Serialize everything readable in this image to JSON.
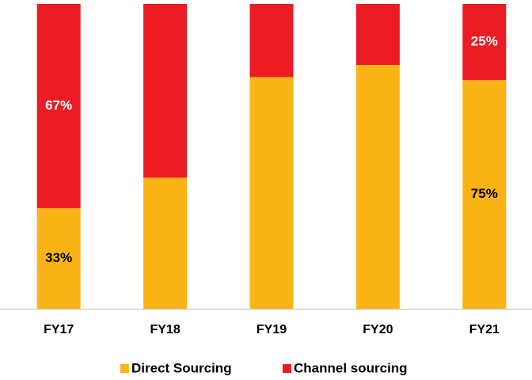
{
  "chart_data": {
    "type": "stacked_bar",
    "categories": [
      "FY17",
      "FY18",
      "FY19",
      "FY20",
      "FY21"
    ],
    "series": [
      {
        "name": "Direct Sourcing",
        "color": "#fbb416",
        "label_color": "#000000",
        "values": [
          33,
          43,
          76,
          80,
          75
        ],
        "value_labels": [
          "33%",
          null,
          null,
          null,
          "75%"
        ]
      },
      {
        "name": "Channel sourcing",
        "color": "#ec1c24",
        "label_color": "#ffffff",
        "values": [
          67,
          57,
          24,
          20,
          25
        ],
        "value_labels": [
          "67%",
          null,
          null,
          null,
          "25%"
        ]
      }
    ],
    "ylim": [
      0,
      100
    ],
    "legend": "bottom"
  }
}
